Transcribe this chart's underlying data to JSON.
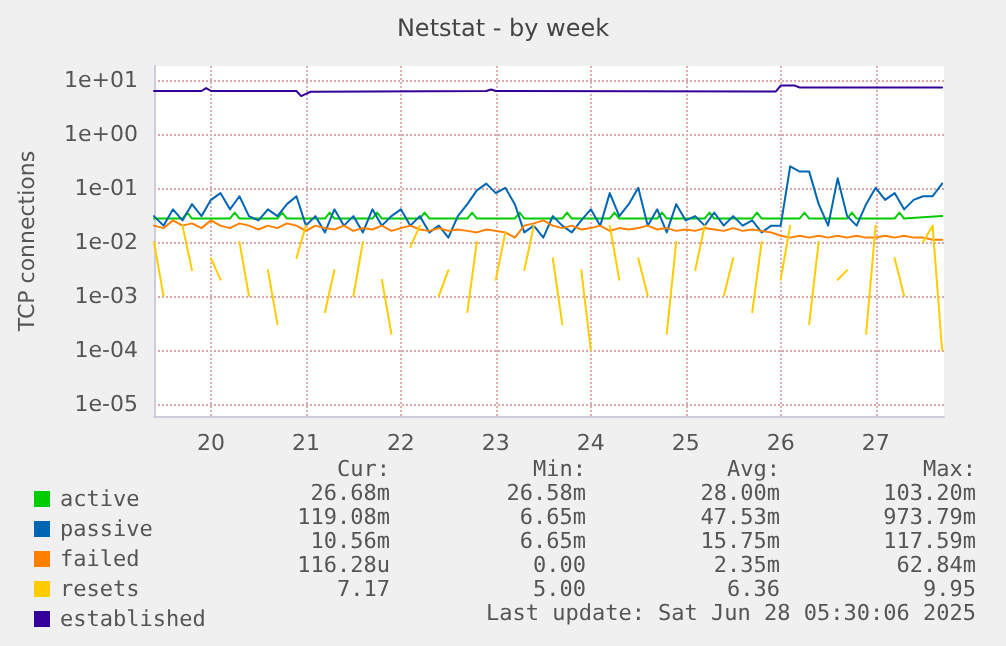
{
  "chart_data": {
    "type": "line",
    "title": "Netstat - by week",
    "ylabel": "TCP connections",
    "log": "y",
    "xlim": [
      19.9,
      28.22
    ],
    "xticks": [
      {
        "value": 20.5,
        "label": "20"
      },
      {
        "value": 21.5,
        "label": "21"
      },
      {
        "value": 22.5,
        "label": "22"
      },
      {
        "value": 23.5,
        "label": "23"
      },
      {
        "value": 24.5,
        "label": "24"
      },
      {
        "value": 25.5,
        "label": "25"
      },
      {
        "value": 26.5,
        "label": "26"
      },
      {
        "value": 27.5,
        "label": "27"
      }
    ],
    "ylim": [
      6e-06,
      18
    ],
    "yticks": [
      {
        "value": 1e-05,
        "label": "1e-05"
      },
      {
        "value": 0.0001,
        "label": "1e-04"
      },
      {
        "value": 0.001,
        "label": "1e-03"
      },
      {
        "value": 0.01,
        "label": "1e-02"
      },
      {
        "value": 0.1,
        "label": "1e-01"
      },
      {
        "value": 1,
        "label": "1e+00"
      },
      {
        "value": 10,
        "label": "1e+01"
      }
    ],
    "grid": true,
    "legend": "bottom",
    "marker": "none",
    "line_style": "solid",
    "x": [
      19.9,
      20.0,
      20.1,
      20.2,
      20.3,
      20.4,
      20.5,
      20.6,
      20.7,
      20.8,
      20.9,
      21.0,
      21.1,
      21.2,
      21.3,
      21.4,
      21.5,
      21.6,
      21.7,
      21.8,
      21.9,
      22.0,
      22.1,
      22.2,
      22.3,
      22.4,
      22.5,
      22.6,
      22.7,
      22.8,
      22.9,
      23.0,
      23.1,
      23.2,
      23.3,
      23.4,
      23.5,
      23.6,
      23.7,
      23.8,
      23.9,
      24.0,
      24.1,
      24.2,
      24.3,
      24.4,
      24.5,
      24.6,
      24.7,
      24.8,
      24.9,
      25.0,
      25.1,
      25.2,
      25.3,
      25.4,
      25.5,
      25.6,
      25.7,
      25.8,
      25.9,
      26.0,
      26.1,
      26.2,
      26.3,
      26.4,
      26.5,
      26.6,
      26.7,
      26.8,
      26.9,
      27.0,
      27.1,
      27.2,
      27.3,
      27.4,
      27.5,
      27.6,
      27.7,
      27.8,
      27.9,
      28.0,
      28.1,
      28.2
    ],
    "series": [
      {
        "name": "active",
        "color": "#00cc00",
        "x": [
          19.9,
          20.2,
          20.25,
          20.3,
          20.7,
          20.75,
          20.8,
          21.2,
          21.25,
          21.3,
          21.7,
          21.75,
          21.8,
          22.2,
          22.25,
          22.3,
          22.7,
          22.75,
          22.8,
          23.2,
          23.25,
          23.3,
          23.7,
          23.75,
          23.8,
          24.2,
          24.25,
          24.3,
          24.7,
          24.75,
          24.8,
          25.2,
          25.25,
          25.3,
          25.7,
          25.75,
          25.8,
          26.2,
          26.25,
          26.3,
          26.7,
          26.75,
          26.8,
          27.2,
          27.25,
          27.3,
          27.7,
          27.75,
          27.8,
          28.2
        ],
        "values": [
          0.027,
          0.027,
          0.035,
          0.027,
          0.027,
          0.035,
          0.027,
          0.027,
          0.035,
          0.027,
          0.027,
          0.035,
          0.027,
          0.027,
          0.035,
          0.027,
          0.027,
          0.035,
          0.027,
          0.027,
          0.035,
          0.027,
          0.027,
          0.035,
          0.027,
          0.027,
          0.035,
          0.027,
          0.027,
          0.035,
          0.027,
          0.027,
          0.035,
          0.027,
          0.027,
          0.035,
          0.027,
          0.027,
          0.035,
          0.027,
          0.027,
          0.035,
          0.027,
          0.027,
          0.035,
          0.027,
          0.027,
          0.035,
          0.027,
          0.03
        ]
      },
      {
        "name": "passive",
        "color": "#0066b3",
        "values": [
          0.03,
          0.02,
          0.04,
          0.025,
          0.05,
          0.03,
          0.06,
          0.08,
          0.04,
          0.07,
          0.03,
          0.025,
          0.04,
          0.03,
          0.05,
          0.07,
          0.02,
          0.03,
          0.015,
          0.04,
          0.02,
          0.03,
          0.015,
          0.04,
          0.02,
          0.03,
          0.04,
          0.02,
          0.03,
          0.015,
          0.02,
          0.012,
          0.03,
          0.05,
          0.09,
          0.12,
          0.08,
          0.1,
          0.05,
          0.015,
          0.02,
          0.012,
          0.03,
          0.02,
          0.015,
          0.025,
          0.04,
          0.02,
          0.08,
          0.03,
          0.05,
          0.1,
          0.02,
          0.04,
          0.015,
          0.05,
          0.025,
          0.03,
          0.02,
          0.035,
          0.02,
          0.03,
          0.02,
          0.025,
          0.015,
          0.02,
          0.02,
          0.25,
          0.2,
          0.2,
          0.05,
          0.02,
          0.15,
          0.03,
          0.02,
          0.05,
          0.1,
          0.06,
          0.08,
          0.04,
          0.06,
          0.07,
          0.07,
          0.12
        ]
      },
      {
        "name": "failed",
        "color": "#ff8000",
        "values": [
          0.02,
          0.018,
          0.025,
          0.02,
          0.022,
          0.018,
          0.025,
          0.02,
          0.018,
          0.022,
          0.02,
          0.017,
          0.02,
          0.018,
          0.022,
          0.02,
          0.016,
          0.02,
          0.018,
          0.017,
          0.02,
          0.016,
          0.018,
          0.017,
          0.02,
          0.016,
          0.018,
          0.02,
          0.017,
          0.016,
          0.018,
          0.016,
          0.017,
          0.016,
          0.015,
          0.017,
          0.016,
          0.015,
          0.012,
          0.02,
          0.022,
          0.025,
          0.02,
          0.018,
          0.02,
          0.017,
          0.018,
          0.02,
          0.016,
          0.018,
          0.017,
          0.018,
          0.02,
          0.017,
          0.018,
          0.016,
          0.017,
          0.016,
          0.018,
          0.017,
          0.016,
          0.018,
          0.016,
          0.017,
          0.016,
          0.015,
          0.013,
          0.012,
          0.013,
          0.012,
          0.013,
          0.012,
          0.013,
          0.012,
          0.013,
          0.012,
          0.012,
          0.013,
          0.012,
          0.013,
          0.012,
          0.012,
          0.011,
          0.011
        ]
      },
      {
        "name": "resets",
        "color": "#ffcc00",
        "values": [
          0.01,
          0.001,
          null,
          0.02,
          0.003,
          null,
          0.005,
          0.002,
          null,
          0.01,
          0.001,
          null,
          0.003,
          0.0003,
          null,
          0.005,
          0.02,
          null,
          0.0005,
          0.003,
          null,
          0.001,
          0.01,
          null,
          0.002,
          0.0002,
          null,
          0.008,
          0.02,
          null,
          0.001,
          0.003,
          null,
          0.0005,
          0.01,
          null,
          0.002,
          0.015,
          null,
          0.003,
          0.02,
          null,
          0.005,
          0.0003,
          null,
          0.003,
          0.0001,
          null,
          0.02,
          0.002,
          null,
          0.005,
          0.001,
          null,
          0.0002,
          0.01,
          null,
          0.003,
          0.02,
          null,
          0.001,
          0.005,
          null,
          0.0005,
          0.01,
          null,
          0.002,
          0.02,
          null,
          0.0003,
          0.01,
          null,
          0.002,
          0.003,
          null,
          0.0002,
          0.02,
          null,
          0.005,
          0.001,
          null,
          0.01,
          0.02,
          0.0001
        ]
      },
      {
        "name": "established",
        "color": "#330099",
        "x": [
          19.9,
          20.4,
          20.45,
          20.5,
          21.4,
          21.45,
          21.5,
          21.55,
          23.4,
          23.45,
          23.5,
          26.45,
          26.5,
          26.65,
          26.7,
          28.2
        ],
        "values": [
          6.2,
          6.2,
          7.0,
          6.2,
          6.2,
          5.0,
          5.5,
          6.0,
          6.2,
          6.6,
          6.2,
          6.1,
          7.8,
          7.8,
          7.2,
          7.17
        ]
      }
    ],
    "annotations": [
      "Cur:",
      "Min:",
      "Avg:",
      "Max:",
      "26.68m",
      "26.58m",
      "28.00m",
      "103.20m",
      "119.08m",
      "6.65m",
      "47.53m",
      "973.79m",
      "10.56m",
      "6.65m",
      "15.75m",
      "117.59m",
      "116.28u",
      "0.00",
      "2.35m",
      "62.84m",
      "7.17",
      "5.00",
      "6.36",
      "9.95",
      "Last update: Sat Jun 28 05:30:06 2025"
    ]
  }
}
